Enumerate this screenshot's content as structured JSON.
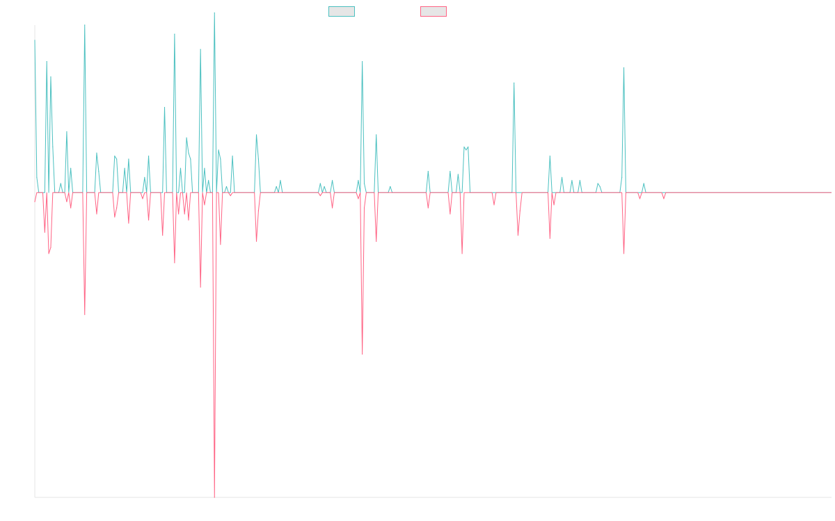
{
  "legend": {
    "items": [
      {
        "label": "",
        "color": "#4bc0c0",
        "fill": "#e6e6e6"
      },
      {
        "label": "",
        "color": "#ff6384",
        "fill": "#e6e6e6"
      }
    ]
  },
  "chart_data": {
    "type": "line",
    "title": "",
    "xlabel": "",
    "ylabel": "",
    "grid": false,
    "legend_position": "top",
    "x_count": 400,
    "ylim": [
      -1.0,
      0.55
    ],
    "series": [
      {
        "name": "",
        "color": "#4bc0c0",
        "sign": 1,
        "spikes": [
          {
            "x": 0,
            "v": 0.5
          },
          {
            "x": 1,
            "v": 0.05
          },
          {
            "x": 6,
            "v": 0.43
          },
          {
            "x": 8,
            "v": 0.38
          },
          {
            "x": 9,
            "v": 0.15
          },
          {
            "x": 13,
            "v": 0.03
          },
          {
            "x": 16,
            "v": 0.2
          },
          {
            "x": 18,
            "v": 0.08
          },
          {
            "x": 25,
            "v": 0.55
          },
          {
            "x": 31,
            "v": 0.13
          },
          {
            "x": 32,
            "v": 0.07
          },
          {
            "x": 40,
            "v": 0.12
          },
          {
            "x": 41,
            "v": 0.11
          },
          {
            "x": 45,
            "v": 0.08
          },
          {
            "x": 47,
            "v": 0.11
          },
          {
            "x": 55,
            "v": 0.05
          },
          {
            "x": 57,
            "v": 0.12
          },
          {
            "x": 65,
            "v": 0.28
          },
          {
            "x": 70,
            "v": 0.52
          },
          {
            "x": 73,
            "v": 0.08
          },
          {
            "x": 76,
            "v": 0.18
          },
          {
            "x": 77,
            "v": 0.13
          },
          {
            "x": 78,
            "v": 0.11
          },
          {
            "x": 83,
            "v": 0.47
          },
          {
            "x": 85,
            "v": 0.08
          },
          {
            "x": 87,
            "v": 0.04
          },
          {
            "x": 90,
            "v": 0.59
          },
          {
            "x": 92,
            "v": 0.14
          },
          {
            "x": 93,
            "v": 0.11
          },
          {
            "x": 96,
            "v": 0.02
          },
          {
            "x": 99,
            "v": 0.12
          },
          {
            "x": 111,
            "v": 0.19
          },
          {
            "x": 112,
            "v": 0.11
          },
          {
            "x": 121,
            "v": 0.02
          },
          {
            "x": 123,
            "v": 0.04
          },
          {
            "x": 143,
            "v": 0.03
          },
          {
            "x": 145,
            "v": 0.02
          },
          {
            "x": 149,
            "v": 0.04
          },
          {
            "x": 162,
            "v": 0.04
          },
          {
            "x": 164,
            "v": 0.43
          },
          {
            "x": 165,
            "v": 0.03
          },
          {
            "x": 171,
            "v": 0.19
          },
          {
            "x": 178,
            "v": 0.02
          },
          {
            "x": 197,
            "v": 0.07
          },
          {
            "x": 208,
            "v": 0.07
          },
          {
            "x": 212,
            "v": 0.06
          },
          {
            "x": 215,
            "v": 0.15
          },
          {
            "x": 216,
            "v": 0.14
          },
          {
            "x": 217,
            "v": 0.15
          },
          {
            "x": 240,
            "v": 0.36
          },
          {
            "x": 258,
            "v": 0.12
          },
          {
            "x": 264,
            "v": 0.05
          },
          {
            "x": 269,
            "v": 0.04
          },
          {
            "x": 273,
            "v": 0.04
          },
          {
            "x": 282,
            "v": 0.03
          },
          {
            "x": 283,
            "v": 0.02
          },
          {
            "x": 294,
            "v": 0.05
          },
          {
            "x": 295,
            "v": 0.41
          },
          {
            "x": 305,
            "v": 0.03
          }
        ]
      },
      {
        "name": "",
        "color": "#ff6384",
        "sign": -1,
        "spikes": [
          {
            "x": 0,
            "v": 0.03
          },
          {
            "x": 5,
            "v": 0.13
          },
          {
            "x": 7,
            "v": 0.2
          },
          {
            "x": 8,
            "v": 0.18
          },
          {
            "x": 16,
            "v": 0.03
          },
          {
            "x": 18,
            "v": 0.05
          },
          {
            "x": 25,
            "v": 0.4
          },
          {
            "x": 31,
            "v": 0.07
          },
          {
            "x": 40,
            "v": 0.08
          },
          {
            "x": 41,
            "v": 0.05
          },
          {
            "x": 47,
            "v": 0.1
          },
          {
            "x": 54,
            "v": 0.02
          },
          {
            "x": 57,
            "v": 0.09
          },
          {
            "x": 64,
            "v": 0.14
          },
          {
            "x": 70,
            "v": 0.23
          },
          {
            "x": 72,
            "v": 0.07
          },
          {
            "x": 75,
            "v": 0.07
          },
          {
            "x": 77,
            "v": 0.09
          },
          {
            "x": 83,
            "v": 0.31
          },
          {
            "x": 85,
            "v": 0.04
          },
          {
            "x": 90,
            "v": 1.0
          },
          {
            "x": 93,
            "v": 0.17
          },
          {
            "x": 98,
            "v": 0.01
          },
          {
            "x": 111,
            "v": 0.16
          },
          {
            "x": 112,
            "v": 0.06
          },
          {
            "x": 143,
            "v": 0.01
          },
          {
            "x": 149,
            "v": 0.05
          },
          {
            "x": 162,
            "v": 0.02
          },
          {
            "x": 164,
            "v": 0.53
          },
          {
            "x": 165,
            "v": 0.05
          },
          {
            "x": 171,
            "v": 0.16
          },
          {
            "x": 197,
            "v": 0.05
          },
          {
            "x": 208,
            "v": 0.07
          },
          {
            "x": 214,
            "v": 0.2
          },
          {
            "x": 230,
            "v": 0.04
          },
          {
            "x": 242,
            "v": 0.14
          },
          {
            "x": 243,
            "v": 0.06
          },
          {
            "x": 258,
            "v": 0.15
          },
          {
            "x": 260,
            "v": 0.04
          },
          {
            "x": 295,
            "v": 0.2
          },
          {
            "x": 303,
            "v": 0.02
          },
          {
            "x": 315,
            "v": 0.02
          }
        ]
      }
    ]
  }
}
